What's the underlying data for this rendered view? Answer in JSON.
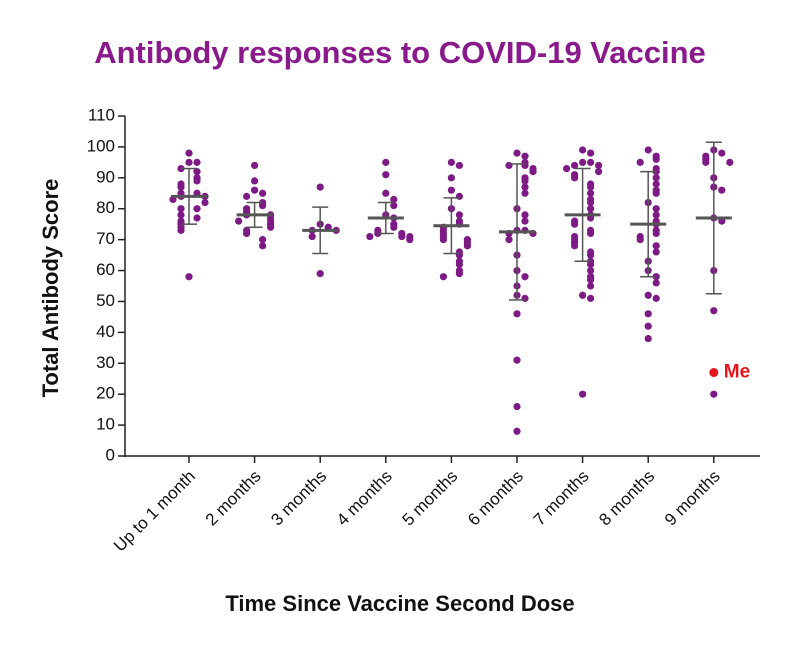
{
  "chart_data": {
    "type": "dotplot",
    "title": "Antibody responses to COVID-19 Vaccine",
    "x_label": "Time Since Vaccine Second Dose",
    "y_label": "Total  Antibody Score",
    "categories": [
      "Up to 1 month",
      "2 months",
      "3 months",
      "4 months",
      "5 months",
      "6 months",
      "7 months",
      "8 months",
      "9 months"
    ],
    "color": "#7d1a86",
    "mean_color": "#555555",
    "groups": [
      [
        98,
        95,
        95,
        93,
        92,
        90,
        89,
        88,
        87,
        85,
        85,
        84,
        84,
        83,
        82,
        80,
        80,
        78,
        77,
        76,
        75,
        74,
        73,
        58
      ],
      [
        94,
        89,
        86,
        85,
        84,
        82,
        81,
        80,
        79,
        78,
        78,
        77,
        76,
        76,
        75,
        74,
        73,
        72,
        70,
        68
      ],
      [
        87,
        75,
        74,
        73,
        73,
        71,
        59
      ],
      [
        95,
        91,
        85,
        83,
        81,
        78,
        77,
        75,
        74,
        73,
        72,
        72,
        71,
        71,
        71,
        70
      ],
      [
        95,
        94,
        90,
        86,
        84,
        80,
        78,
        76,
        75,
        74,
        73,
        72,
        71,
        70,
        70,
        69,
        68,
        66,
        65,
        63,
        62,
        60,
        59,
        58
      ],
      [
        98,
        97,
        95,
        94,
        94,
        93,
        92,
        90,
        89,
        87,
        85,
        80,
        78,
        76,
        73,
        73,
        72,
        72,
        70,
        65,
        60,
        58,
        55,
        52,
        51,
        46,
        31,
        16,
        8
      ],
      [
        99,
        98,
        95,
        95,
        94,
        94,
        93,
        92,
        91,
        90,
        88,
        87,
        85,
        83,
        82,
        80,
        78,
        77,
        76,
        75,
        73,
        72,
        71,
        70,
        69,
        68,
        66,
        65,
        63,
        62,
        60,
        58,
        57,
        55,
        52,
        51,
        20
      ],
      [
        99,
        97,
        96,
        95,
        93,
        92,
        90,
        88,
        86,
        85,
        82,
        80,
        78,
        76,
        75,
        73,
        72,
        71,
        70,
        68,
        66,
        63,
        60,
        58,
        56,
        52,
        51,
        46,
        42,
        38
      ],
      [
        99,
        98,
        97,
        96,
        95,
        95,
        90,
        87,
        86,
        77,
        76,
        60,
        47,
        20
      ]
    ],
    "means": [
      84,
      78,
      73,
      77,
      74.5,
      72.5,
      78,
      75,
      77
    ],
    "sd": [
      9,
      4,
      7.5,
      5,
      9,
      22,
      15,
      17,
      24.5
    ],
    "annotation": {
      "text": "Me",
      "category": "9 months",
      "value": 27,
      "color": "#e8141b"
    },
    "ylim": [
      0,
      110
    ],
    "yticks": [
      0,
      10,
      20,
      30,
      40,
      50,
      60,
      70,
      80,
      90,
      100,
      110
    ]
  }
}
